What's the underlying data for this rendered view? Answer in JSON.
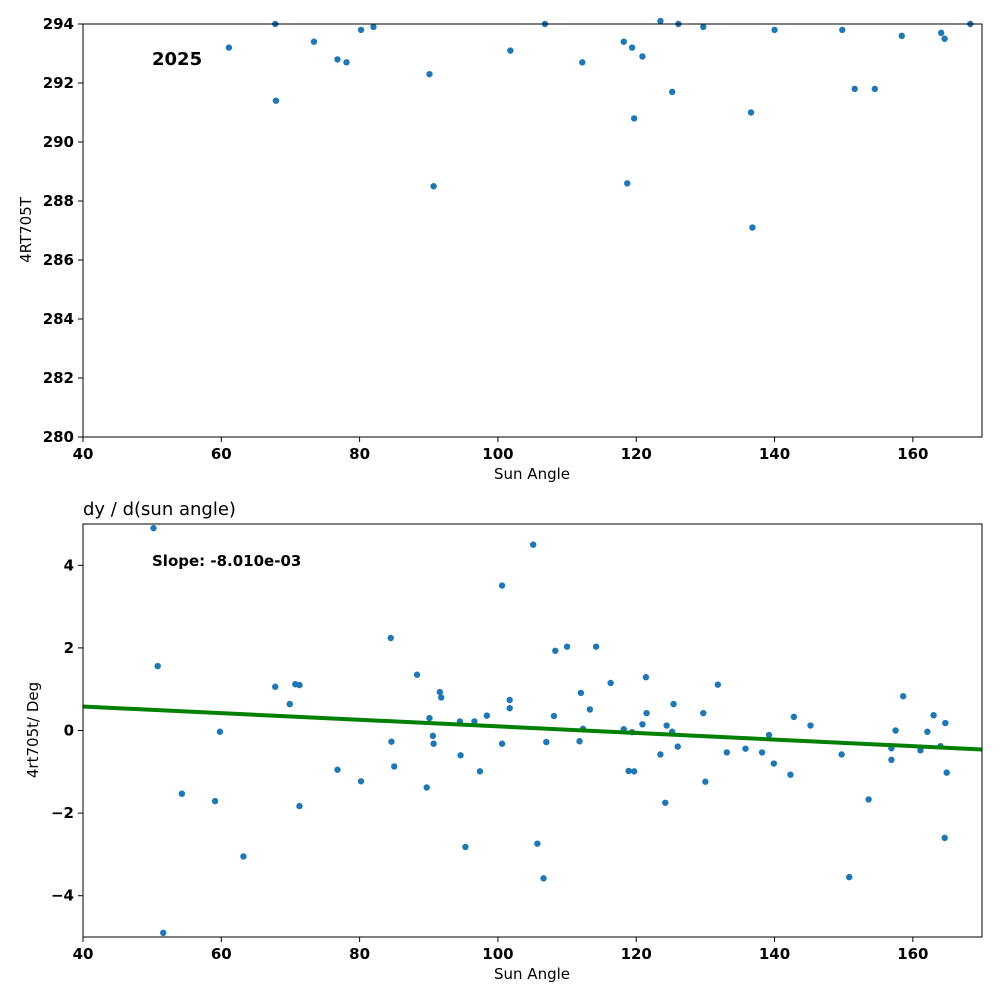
{
  "chart_data": [
    {
      "type": "scatter",
      "title": "",
      "annotation": "2025",
      "xlabel": "Sun Angle",
      "ylabel": "4RT705T",
      "xlim": [
        40,
        170
      ],
      "ylim": [
        280,
        294
      ],
      "xticks": [
        "40",
        "60",
        "80",
        "100",
        "120",
        "140",
        "160"
      ],
      "yticks": [
        "280",
        "282",
        "284",
        "286",
        "288",
        "290",
        "292",
        "294"
      ],
      "point_color": "#1f77b4",
      "points": [
        [
          61.1,
          293.2
        ],
        [
          67.8,
          294.0
        ],
        [
          67.9,
          291.4
        ],
        [
          73.4,
          293.4
        ],
        [
          76.8,
          292.8
        ],
        [
          78.1,
          292.7
        ],
        [
          80.2,
          293.8
        ],
        [
          82.0,
          293.9
        ],
        [
          90.1,
          292.3
        ],
        [
          90.7,
          288.5
        ],
        [
          101.8,
          293.1
        ],
        [
          106.8,
          294.0
        ],
        [
          112.2,
          292.7
        ],
        [
          118.2,
          293.4
        ],
        [
          118.7,
          288.6
        ],
        [
          119.4,
          293.2
        ],
        [
          119.7,
          290.8
        ],
        [
          120.9,
          292.9
        ],
        [
          123.5,
          294.1
        ],
        [
          125.2,
          291.7
        ],
        [
          126.1,
          294.0
        ],
        [
          129.7,
          293.9
        ],
        [
          136.6,
          291.0
        ],
        [
          136.8,
          287.1
        ],
        [
          140.0,
          293.8
        ],
        [
          149.8,
          293.8
        ],
        [
          151.6,
          291.8
        ],
        [
          154.5,
          291.8
        ],
        [
          158.4,
          293.6
        ],
        [
          164.1,
          293.7
        ],
        [
          164.6,
          293.5
        ],
        [
          168.3,
          294.0
        ]
      ]
    },
    {
      "type": "scatter",
      "title": "dy / d(sun angle)",
      "annotation": "Slope: -8.010e-03",
      "xlabel": "Sun Angle",
      "ylabel": "4rt705t/ Deg",
      "xlim": [
        40,
        170
      ],
      "ylim": [
        -5,
        5
      ],
      "xticks": [
        "40",
        "60",
        "80",
        "100",
        "120",
        "140",
        "160"
      ],
      "yticks": [
        "−4",
        "−2",
        "0",
        "2",
        "4"
      ],
      "point_color": "#1f77b4",
      "fit_color": "#008000",
      "fit_line": [
        [
          40,
          0.58
        ],
        [
          170,
          -0.46
        ]
      ],
      "points": [
        [
          50.2,
          4.9
        ],
        [
          50.8,
          1.56
        ],
        [
          51.6,
          -4.9
        ],
        [
          54.3,
          -1.53
        ],
        [
          59.1,
          -1.71
        ],
        [
          59.8,
          -0.03
        ],
        [
          63.2,
          -3.05
        ],
        [
          67.8,
          1.06
        ],
        [
          69.9,
          0.64
        ],
        [
          70.7,
          1.12
        ],
        [
          71.3,
          1.1
        ],
        [
          71.3,
          -1.83
        ],
        [
          76.8,
          -0.95
        ],
        [
          80.2,
          -1.23
        ],
        [
          84.5,
          2.24
        ],
        [
          84.6,
          -0.27
        ],
        [
          85.0,
          -0.87
        ],
        [
          88.3,
          1.35
        ],
        [
          89.7,
          -1.38
        ],
        [
          90.1,
          0.3
        ],
        [
          90.6,
          -0.13
        ],
        [
          90.7,
          -0.32
        ],
        [
          91.6,
          0.93
        ],
        [
          91.8,
          0.8
        ],
        [
          94.5,
          0.22
        ],
        [
          94.6,
          -0.6
        ],
        [
          95.3,
          -2.82
        ],
        [
          96.6,
          0.22
        ],
        [
          97.4,
          -0.99
        ],
        [
          98.4,
          0.36
        ],
        [
          100.6,
          3.51
        ],
        [
          100.6,
          -0.32
        ],
        [
          101.7,
          0.74
        ],
        [
          101.7,
          0.54
        ],
        [
          105.1,
          4.5
        ],
        [
          105.7,
          -2.74
        ],
        [
          106.6,
          -3.58
        ],
        [
          107.0,
          -0.28
        ],
        [
          108.1,
          0.35
        ],
        [
          108.3,
          1.93
        ],
        [
          110.0,
          2.03
        ],
        [
          111.8,
          -0.26
        ],
        [
          112.0,
          0.91
        ],
        [
          112.3,
          0.04
        ],
        [
          113.3,
          0.51
        ],
        [
          114.2,
          2.03
        ],
        [
          116.3,
          1.15
        ],
        [
          118.2,
          0.03
        ],
        [
          118.9,
          -0.98
        ],
        [
          119.4,
          -0.04
        ],
        [
          119.7,
          -0.99
        ],
        [
          120.9,
          0.15
        ],
        [
          121.4,
          1.29
        ],
        [
          121.5,
          0.42
        ],
        [
          123.5,
          -0.58
        ],
        [
          124.2,
          -1.75
        ],
        [
          124.4,
          0.12
        ],
        [
          125.2,
          -0.03
        ],
        [
          125.4,
          0.64
        ],
        [
          126.0,
          -0.39
        ],
        [
          129.7,
          0.42
        ],
        [
          130.0,
          -1.24
        ],
        [
          131.8,
          1.11
        ],
        [
          133.1,
          -0.53
        ],
        [
          135.8,
          -0.44
        ],
        [
          138.2,
          -0.53
        ],
        [
          139.2,
          -0.11
        ],
        [
          139.9,
          -0.8
        ],
        [
          142.3,
          -1.07
        ],
        [
          142.8,
          0.33
        ],
        [
          145.2,
          0.12
        ],
        [
          149.7,
          -0.58
        ],
        [
          150.8,
          -3.55
        ],
        [
          153.6,
          -1.67
        ],
        [
          156.9,
          -0.43
        ],
        [
          156.9,
          -0.71
        ],
        [
          157.5,
          0.0
        ],
        [
          158.6,
          0.83
        ],
        [
          161.1,
          -0.48
        ],
        [
          162.1,
          -0.03
        ],
        [
          163.0,
          0.37
        ],
        [
          164.0,
          -0.38
        ],
        [
          164.6,
          -2.6
        ],
        [
          164.7,
          0.18
        ],
        [
          164.9,
          -1.02
        ]
      ]
    }
  ]
}
